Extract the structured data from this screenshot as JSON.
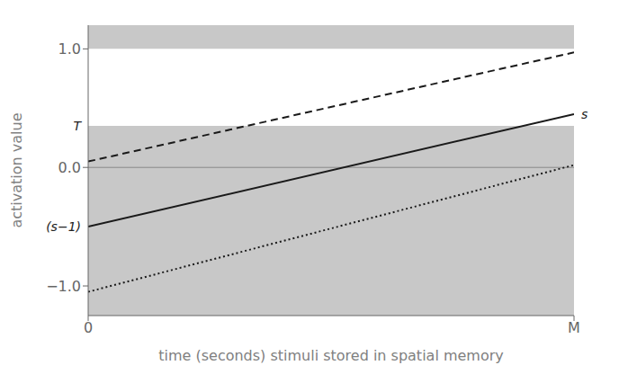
{
  "chart_data": {
    "type": "line",
    "title": "",
    "xlabel": "time (seconds) stimuli stored in spatial memory",
    "ylabel": "activation value",
    "x": [
      0,
      1
    ],
    "xlim": [
      0,
      1
    ],
    "ylim": [
      -1.25,
      1.2
    ],
    "xticks": [
      0,
      {
        "value": 1,
        "label": "M"
      }
    ],
    "yticks": [
      {
        "value": 1.0,
        "label": "1.0"
      },
      {
        "value": 0.0,
        "label": "0.0"
      },
      {
        "value": -1.0,
        "label": "−1.0"
      }
    ],
    "grid": false,
    "series": [
      {
        "values": [
          0.05,
          0.97
        ],
        "line_style": "dashed",
        "color": "#1a1a1a"
      },
      {
        "values": [
          -0.5,
          0.45
        ],
        "line_style": "solid",
        "color": "#1a1a1a"
      },
      {
        "values": [
          -1.05,
          0.02
        ],
        "line_style": "dotted",
        "color": "#1a1a1a"
      }
    ],
    "bands": [
      {
        "y1": -1.25,
        "y2": 0.35,
        "color": "#c8c8c8"
      },
      {
        "y1": 0.35,
        "y2": 1.0,
        "color": "#ffffff"
      },
      {
        "y1": 1.0,
        "y2": 1.2,
        "color": "#c8c8c8"
      }
    ],
    "reference_lines": [
      0
    ],
    "annotations": [
      {
        "text": "T",
        "x": 0,
        "y": 0.35
      },
      {
        "text": "s",
        "x": 1,
        "y": 0.45
      },
      {
        "text": "(s−1)",
        "x": 0,
        "y": -0.5
      }
    ]
  }
}
